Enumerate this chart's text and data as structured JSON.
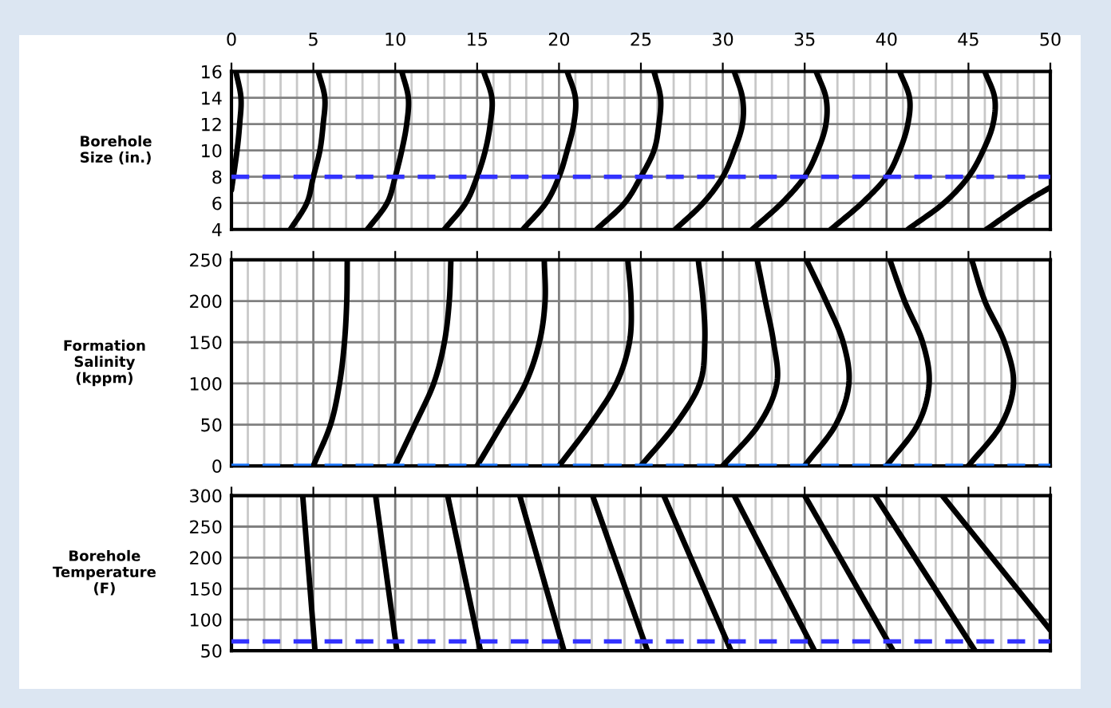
{
  "chart_data": [
    {
      "type": "line",
      "ylabel": "Borehole\nSize (in.)",
      "xlim": [
        0,
        50
      ],
      "ylim": [
        4,
        16
      ],
      "yticks": [
        4,
        6,
        8,
        10,
        12,
        14,
        16
      ],
      "grid": true,
      "line_style": "solid",
      "marker": "none",
      "xticks": [
        0,
        {
          "value": 1,
          "label": null
        },
        {
          "value": 2,
          "label": null
        },
        {
          "value": 3,
          "label": null
        },
        {
          "value": 4,
          "label": null
        },
        5,
        {
          "value": 6,
          "label": null
        },
        {
          "value": 7,
          "label": null
        },
        {
          "value": 8,
          "label": null
        },
        {
          "value": 9,
          "label": null
        },
        10,
        {
          "value": 11,
          "label": null
        },
        {
          "value": 12,
          "label": null
        },
        {
          "value": 13,
          "label": null
        },
        {
          "value": 14,
          "label": null
        },
        15,
        {
          "value": 16,
          "label": null
        },
        {
          "value": 17,
          "label": null
        },
        {
          "value": 18,
          "label": null
        },
        {
          "value": 19,
          "label": null
        },
        20,
        {
          "value": 21,
          "label": null
        },
        {
          "value": 22,
          "label": null
        },
        {
          "value": 23,
          "label": null
        },
        {
          "value": 24,
          "label": null
        },
        25,
        {
          "value": 26,
          "label": null
        },
        {
          "value": 27,
          "label": null
        },
        {
          "value": 28,
          "label": null
        },
        {
          "value": 29,
          "label": null
        },
        30,
        {
          "value": 31,
          "label": null
        },
        {
          "value": 32,
          "label": null
        },
        {
          "value": 33,
          "label": null
        },
        {
          "value": 34,
          "label": null
        },
        35,
        {
          "value": 36,
          "label": null
        },
        {
          "value": 37,
          "label": null
        },
        {
          "value": 38,
          "label": null
        },
        {
          "value": 39,
          "label": null
        },
        40,
        {
          "value": 41,
          "label": null
        },
        {
          "value": 42,
          "label": null
        },
        {
          "value": 43,
          "label": null
        },
        {
          "value": 44,
          "label": null
        },
        45,
        {
          "value": 46,
          "label": null
        },
        {
          "value": 47,
          "label": null
        },
        {
          "value": 48,
          "label": null
        },
        {
          "value": 49,
          "label": null
        },
        50
      ],
      "ref_lines": [
        {
          "axis": "y",
          "value": 8,
          "color": "#3333ff",
          "line_style": "dashed"
        }
      ],
      "series": [
        {
          "color": "#000000",
          "x": [
            0,
            0.34,
            0.5,
            0.58,
            0.27
          ],
          "values": [
            7,
            10,
            12,
            14,
            16
          ]
        },
        {
          "color": "#000000",
          "x": [
            3.6,
            4.6,
            5,
            5.4,
            5.6,
            5.7,
            5.3
          ],
          "values": [
            4,
            6,
            8,
            10,
            12,
            14,
            16
          ]
        },
        {
          "color": "#000000",
          "x": [
            8.3,
            9.5,
            10,
            10.4,
            10.7,
            10.8,
            10.4
          ],
          "values": [
            4,
            6,
            8,
            10,
            12,
            14,
            16
          ]
        },
        {
          "color": "#000000",
          "x": [
            13,
            14.3,
            15,
            15.5,
            15.8,
            15.9,
            15.4
          ],
          "values": [
            4,
            6,
            8,
            10,
            12,
            14,
            16
          ]
        },
        {
          "color": "#000000",
          "x": [
            17.8,
            19.2,
            20,
            20.5,
            20.9,
            21,
            20.5
          ],
          "values": [
            4,
            6,
            8,
            10,
            12,
            14,
            16
          ]
        },
        {
          "color": "#000000",
          "x": [
            22.3,
            24,
            25,
            25.8,
            26.1,
            26.2,
            25.8
          ],
          "values": [
            4,
            6,
            8,
            10,
            12,
            14,
            16
          ]
        },
        {
          "color": "#000000",
          "x": [
            27.1,
            28.8,
            30,
            30.7,
            31.2,
            31.2,
            30.7
          ],
          "values": [
            4,
            6,
            8,
            10,
            12,
            14,
            16
          ]
        },
        {
          "color": "#000000",
          "x": [
            31.8,
            33.6,
            35,
            35.8,
            36.3,
            36.3,
            35.7
          ],
          "values": [
            4,
            6,
            8,
            10,
            12,
            14,
            16
          ]
        },
        {
          "color": "#000000",
          "x": [
            36.6,
            38.5,
            40,
            40.8,
            41.3,
            41.4,
            40.8
          ],
          "values": [
            4,
            6,
            8,
            10,
            12,
            14,
            16
          ]
        },
        {
          "color": "#000000",
          "x": [
            41.3,
            43.5,
            45,
            45.9,
            46.5,
            46.6,
            46
          ],
          "values": [
            4,
            6,
            8,
            10,
            12,
            14,
            16
          ]
        },
        {
          "color": "#000000",
          "x": [
            46.1,
            48.4,
            50
          ],
          "values": [
            4,
            6,
            7.2
          ]
        }
      ]
    },
    {
      "type": "line",
      "ylabel": "Formation\nSalinity\n(kppm)",
      "xlim": [
        0,
        50
      ],
      "ylim": [
        0,
        250
      ],
      "yticks": [
        0,
        50,
        100,
        150,
        200,
        250
      ],
      "grid": true,
      "tick_labels": "y",
      "line_style": "solid",
      "marker": "none",
      "xticks": [
        0,
        {
          "value": 1,
          "label": null
        },
        {
          "value": 2,
          "label": null
        },
        {
          "value": 3,
          "label": null
        },
        {
          "value": 4,
          "label": null
        },
        5,
        {
          "value": 6,
          "label": null
        },
        {
          "value": 7,
          "label": null
        },
        {
          "value": 8,
          "label": null
        },
        {
          "value": 9,
          "label": null
        },
        10,
        {
          "value": 11,
          "label": null
        },
        {
          "value": 12,
          "label": null
        },
        {
          "value": 13,
          "label": null
        },
        {
          "value": 14,
          "label": null
        },
        15,
        {
          "value": 16,
          "label": null
        },
        {
          "value": 17,
          "label": null
        },
        {
          "value": 18,
          "label": null
        },
        {
          "value": 19,
          "label": null
        },
        20,
        {
          "value": 21,
          "label": null
        },
        {
          "value": 22,
          "label": null
        },
        {
          "value": 23,
          "label": null
        },
        {
          "value": 24,
          "label": null
        },
        25,
        {
          "value": 26,
          "label": null
        },
        {
          "value": 27,
          "label": null
        },
        {
          "value": 28,
          "label": null
        },
        {
          "value": 29,
          "label": null
        },
        30,
        {
          "value": 31,
          "label": null
        },
        {
          "value": 32,
          "label": null
        },
        {
          "value": 33,
          "label": null
        },
        {
          "value": 34,
          "label": null
        },
        35,
        {
          "value": 36,
          "label": null
        },
        {
          "value": 37,
          "label": null
        },
        {
          "value": 38,
          "label": null
        },
        {
          "value": 39,
          "label": null
        },
        40,
        {
          "value": 41,
          "label": null
        },
        {
          "value": 42,
          "label": null
        },
        {
          "value": 43,
          "label": null
        },
        {
          "value": 44,
          "label": null
        },
        45,
        {
          "value": 46,
          "label": null
        },
        {
          "value": 47,
          "label": null
        },
        {
          "value": 48,
          "label": null
        },
        {
          "value": 49,
          "label": null
        },
        50
      ],
      "ref_lines": [
        {
          "axis": "y",
          "value": 0,
          "color": "#1a75ff",
          "line_style": "dashed"
        }
      ],
      "series": [
        {
          "color": "#000000",
          "x": [
            5,
            6.05,
            6.6,
            6.9,
            7.04,
            7.07
          ],
          "values": [
            0,
            50,
            100,
            150,
            200,
            250
          ]
        },
        {
          "color": "#000000",
          "x": [
            10,
            11.2,
            12.35,
            13,
            13.3,
            13.4
          ],
          "values": [
            0,
            50,
            100,
            150,
            200,
            250
          ]
        },
        {
          "color": "#000000",
          "x": [
            15,
            16.5,
            17.95,
            18.8,
            19.15,
            19.1
          ],
          "values": [
            0,
            50,
            100,
            150,
            200,
            250
          ]
        },
        {
          "color": "#000000",
          "x": [
            20,
            21.9,
            23.5,
            24.3,
            24.4,
            24.2
          ],
          "values": [
            0,
            50,
            100,
            150,
            200,
            250
          ]
        },
        {
          "color": "#000000",
          "x": [
            25,
            27.1,
            28.6,
            28.9,
            28.8,
            28.5
          ],
          "values": [
            0,
            50,
            100,
            150,
            200,
            250
          ]
        },
        {
          "color": "#000000",
          "x": [
            30,
            32.2,
            33.3,
            33.1,
            32.6,
            32.1
          ],
          "values": [
            0,
            50,
            100,
            150,
            200,
            250
          ]
        },
        {
          "color": "#000000",
          "x": [
            35,
            36.9,
            37.7,
            37.35,
            36.3,
            35.1
          ],
          "values": [
            0,
            50,
            100,
            150,
            200,
            250
          ]
        },
        {
          "color": "#000000",
          "x": [
            40,
            41.9,
            42.6,
            42.2,
            41.1,
            40.2
          ],
          "values": [
            0,
            50,
            100,
            150,
            200,
            250
          ]
        },
        {
          "color": "#000000",
          "x": [
            45,
            47,
            47.75,
            47.2,
            46,
            45.2
          ],
          "values": [
            0,
            50,
            100,
            150,
            200,
            250
          ]
        }
      ]
    },
    {
      "type": "line",
      "ylabel": "Borehole\nTemperature\n(F)",
      "xlim": [
        0,
        50
      ],
      "ylim": [
        50,
        300
      ],
      "yticks": [
        50,
        100,
        150,
        200,
        250,
        300
      ],
      "grid": true,
      "tick_labels": "y",
      "line_style": "solid",
      "marker": "none",
      "xticks": [
        0,
        {
          "value": 1,
          "label": null
        },
        {
          "value": 2,
          "label": null
        },
        {
          "value": 3,
          "label": null
        },
        {
          "value": 4,
          "label": null
        },
        5,
        {
          "value": 6,
          "label": null
        },
        {
          "value": 7,
          "label": null
        },
        {
          "value": 8,
          "label": null
        },
        {
          "value": 9,
          "label": null
        },
        10,
        {
          "value": 11,
          "label": null
        },
        {
          "value": 12,
          "label": null
        },
        {
          "value": 13,
          "label": null
        },
        {
          "value": 14,
          "label": null
        },
        15,
        {
          "value": 16,
          "label": null
        },
        {
          "value": 17,
          "label": null
        },
        {
          "value": 18,
          "label": null
        },
        {
          "value": 19,
          "label": null
        },
        20,
        {
          "value": 21,
          "label": null
        },
        {
          "value": 22,
          "label": null
        },
        {
          "value": 23,
          "label": null
        },
        {
          "value": 24,
          "label": null
        },
        25,
        {
          "value": 26,
          "label": null
        },
        {
          "value": 27,
          "label": null
        },
        {
          "value": 28,
          "label": null
        },
        {
          "value": 29,
          "label": null
        },
        30,
        {
          "value": 31,
          "label": null
        },
        {
          "value": 32,
          "label": null
        },
        {
          "value": 33,
          "label": null
        },
        {
          "value": 34,
          "label": null
        },
        35,
        {
          "value": 36,
          "label": null
        },
        {
          "value": 37,
          "label": null
        },
        {
          "value": 38,
          "label": null
        },
        {
          "value": 39,
          "label": null
        },
        40,
        {
          "value": 41,
          "label": null
        },
        {
          "value": 42,
          "label": null
        },
        {
          "value": 43,
          "label": null
        },
        {
          "value": 44,
          "label": null
        },
        45,
        {
          "value": 46,
          "label": null
        },
        {
          "value": 47,
          "label": null
        },
        {
          "value": 48,
          "label": null
        },
        {
          "value": 49,
          "label": null
        },
        50
      ],
      "ref_lines": [
        {
          "axis": "y",
          "value": 65,
          "color": "#3333ff",
          "line_style": "dashed"
        }
      ],
      "series": [
        {
          "color": "#000000",
          "x": [
            5.1,
            4.35
          ],
          "values": [
            50,
            300
          ]
        },
        {
          "color": "#000000",
          "x": [
            10.1,
            8.8
          ],
          "values": [
            50,
            300
          ]
        },
        {
          "color": "#000000",
          "x": [
            15.2,
            13.2
          ],
          "values": [
            50,
            300
          ]
        },
        {
          "color": "#000000",
          "x": [
            20.3,
            17.6
          ],
          "values": [
            50,
            300
          ]
        },
        {
          "color": "#000000",
          "x": [
            25.4,
            22.05
          ],
          "values": [
            50,
            300
          ]
        },
        {
          "color": "#000000",
          "x": [
            30.5,
            26.4
          ],
          "values": [
            50,
            300
          ]
        },
        {
          "color": "#000000",
          "x": [
            35.6,
            30.7
          ],
          "values": [
            50,
            300
          ]
        },
        {
          "color": "#000000",
          "x": [
            40.4,
            35
          ],
          "values": [
            50,
            300
          ]
        },
        {
          "color": "#000000",
          "x": [
            45.4,
            39.3
          ],
          "values": [
            50,
            300
          ]
        },
        {
          "color": "#000000",
          "x": [
            50,
            43.4
          ],
          "values": [
            83,
            300
          ]
        }
      ]
    }
  ]
}
